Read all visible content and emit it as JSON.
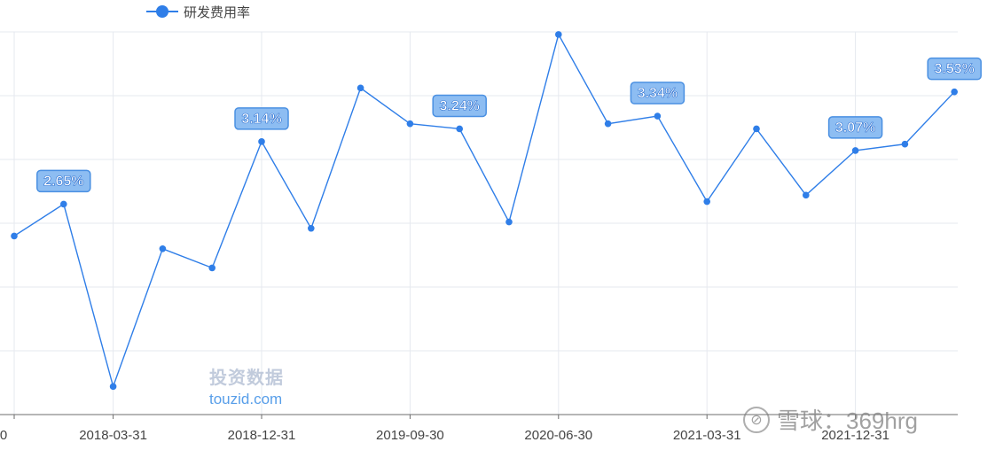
{
  "legend": {
    "label": "研发费用率"
  },
  "watermark": {
    "cn": "投资数据",
    "en": "touzid.com"
  },
  "xueqiu": {
    "icon": "xueqiu-icon",
    "text": "雪球：369hrg"
  },
  "chart_data": {
    "type": "line",
    "series": [
      {
        "name": "研发费用率",
        "values": [
          2.4,
          2.65,
          1.22,
          2.3,
          2.15,
          3.14,
          2.46,
          3.56,
          3.28,
          3.24,
          2.51,
          3.98,
          3.28,
          3.34,
          2.67,
          3.24,
          2.72,
          3.07,
          3.12,
          3.53
        ]
      }
    ],
    "x": [
      "2017-09-30",
      "2017-12-31",
      "2018-03-31",
      "2018-06-30",
      "2018-09-30",
      "2018-12-31",
      "2019-03-31",
      "2019-06-30",
      "2019-09-30",
      "2019-12-31",
      "2020-03-31",
      "2020-06-30",
      "2020-09-30",
      "2020-12-31",
      "2021-03-31",
      "2021-06-30",
      "2021-09-30",
      "2021-12-31",
      "2022-03-31",
      "2022-06-30"
    ],
    "x_tick_labels": [
      "0",
      "2018-03-31",
      "2018-12-31",
      "2019-09-30",
      "2020-06-30",
      "2021-03-31",
      "2021-12-31"
    ],
    "x_tick_indices": [
      0,
      2,
      5,
      8,
      11,
      14,
      17
    ],
    "data_labels": [
      {
        "index": 1,
        "text": "2.65%"
      },
      {
        "index": 5,
        "text": "3.14%"
      },
      {
        "index": 9,
        "text": "3.24%"
      },
      {
        "index": 13,
        "text": "3.34%"
      },
      {
        "index": 17,
        "text": "3.07%"
      },
      {
        "index": 19,
        "text": "3.53%"
      }
    ],
    "ylim": [
      1.0,
      4.0
    ],
    "grid": true,
    "legend_position": "top-left",
    "color": "#2f7ee8",
    "label_bg": "#8dbdf2",
    "label_border": "#4a90e2"
  }
}
